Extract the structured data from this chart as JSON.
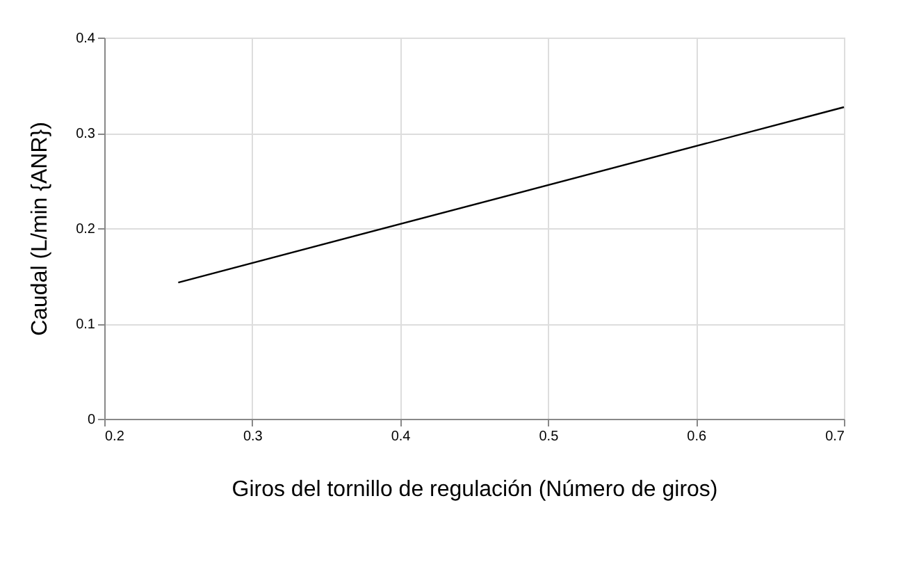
{
  "chart_data": {
    "type": "line",
    "xlabel": "Giros del tornillo de regulación (Número de giros)",
    "ylabel": "Caudal (L/min {ANR})",
    "x": [
      0.25,
      0.7
    ],
    "series": [
      {
        "color": "#000000",
        "values": [
          0.143,
          0.327
        ]
      }
    ],
    "xlim": [
      0.2,
      0.7
    ],
    "xticks": [
      0.2,
      0.3,
      0.4,
      0.5,
      0.6,
      0.7
    ],
    "ylim": [
      0,
      0.4
    ],
    "yticks": [
      0,
      0.1,
      0.2,
      0.3,
      0.4
    ],
    "grid": true,
    "legend": false,
    "marker": "none",
    "line_style": "solid"
  }
}
